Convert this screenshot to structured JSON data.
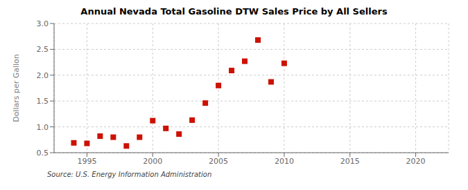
{
  "chart_data": {
    "type": "scatter",
    "title": "Annual Nevada Total Gasoline DTW Sales Price by All Sellers",
    "y_label": "Dollars per Gallon",
    "annotations": [
      "Source: U.S. Energy Information Administration"
    ],
    "x": [
      1994,
      1995,
      1996,
      1997,
      1998,
      1999,
      2000,
      2001,
      2002,
      2003,
      2004,
      2005,
      2006,
      2007,
      2008,
      2009,
      2010
    ],
    "values": [
      0.69,
      0.68,
      0.82,
      0.8,
      0.63,
      0.8,
      1.12,
      0.97,
      0.86,
      1.13,
      1.46,
      1.8,
      2.09,
      2.27,
      2.68,
      1.87,
      2.23
    ],
    "color": "#cc1100",
    "marker": "square",
    "xlim": [
      1992.5,
      2022.5
    ],
    "ylim": [
      0.5,
      3.0
    ],
    "xticks": [
      1995,
      2000,
      2005,
      2010,
      2015,
      2020
    ],
    "yticks": [
      0.5,
      {
        "value": 1,
        "label": "1.0"
      },
      1.5,
      {
        "value": 2,
        "label": "2.0"
      },
      2.5,
      {
        "value": 3,
        "label": "3.0"
      }
    ],
    "grid": true
  }
}
